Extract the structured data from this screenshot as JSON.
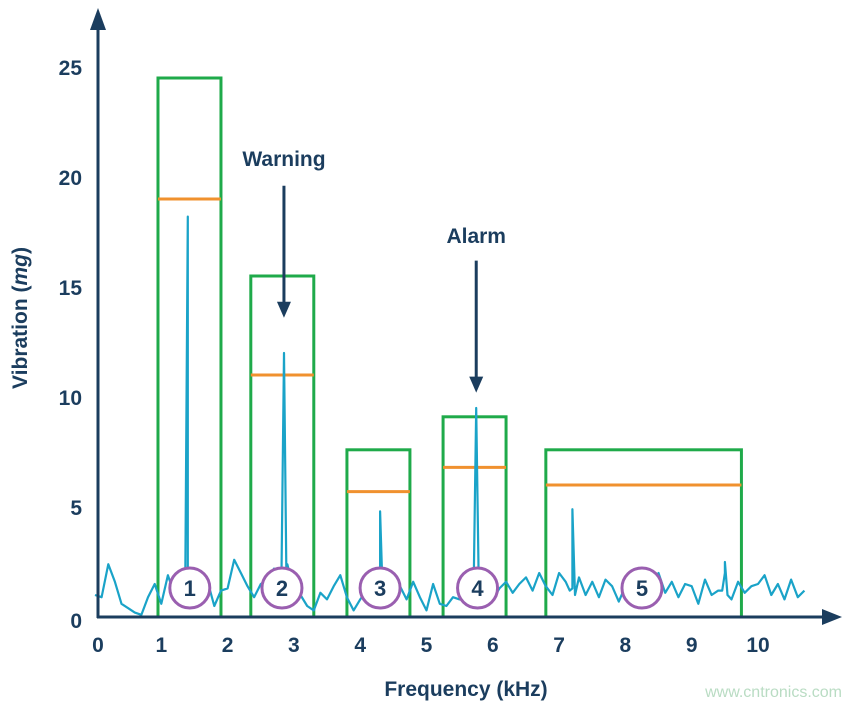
{
  "chart_data": {
    "type": "line",
    "xlabel": "Frequency (kHz)",
    "ylabel_prefix": "Vibration (",
    "ylabel_unit": "mg",
    "ylabel_suffix": ")",
    "xlim": [
      0,
      11
    ],
    "ylim": [
      0,
      27
    ],
    "xticks": [
      "0",
      "1",
      "2",
      "3",
      "4",
      "5",
      "6",
      "7",
      "8",
      "9",
      "10"
    ],
    "yticks": [
      "0",
      "5",
      "10",
      "15",
      "20",
      "25"
    ],
    "grid": false,
    "spectrum": {
      "x_start": 0,
      "x_step": 0.1,
      "values": [
        1.0,
        0.9,
        2.4,
        1.6,
        0.6,
        0.4,
        0.2,
        0.1,
        0.9,
        1.5,
        0.6,
        1.9,
        1.0,
        0.8,
        2.2,
        0.7,
        1.8,
        1.6,
        0.5,
        1.2,
        1.3,
        2.6,
        2.0,
        1.4,
        0.9,
        1.5,
        1.7,
        2.2,
        1.8,
        2.4,
        1.2,
        1.0,
        0.5,
        0.3,
        1.1,
        0.8,
        1.4,
        1.9,
        0.9,
        0.3,
        0.8,
        1.2,
        0.6,
        0.9,
        1.0,
        1.3,
        1.4,
        0.8,
        1.6,
        0.9,
        0.3,
        1.5,
        0.6,
        0.5,
        0.9,
        0.8,
        1.0,
        1.1,
        0.7,
        0.9,
        0.8,
        1.3,
        1.6,
        1.1,
        1.5,
        1.8,
        1.2,
        2.0,
        1.4,
        1.0,
        2.0,
        1.6,
        1.3,
        1.8,
        1.0,
        1.6,
        0.9,
        1.7,
        1.4,
        0.7,
        1.4,
        1.9,
        1.1,
        1.6,
        0.8,
        2.0,
        1.1,
        1.6,
        0.9,
        1.5,
        1.4,
        0.6,
        1.7,
        1.0,
        1.2,
        2.0,
        0.8,
        1.6,
        1.1,
        1.4,
        1.5,
        1.9,
        1.0,
        1.5,
        0.8,
        1.7,
        0.9,
        1.2
      ]
    },
    "peaks": [
      [
        1.4,
        18.2
      ],
      [
        2.85,
        12.0
      ],
      [
        4.3,
        4.8
      ],
      [
        5.75,
        9.5
      ],
      [
        7.2,
        4.9
      ],
      [
        9.5,
        2.5
      ]
    ],
    "bands": [
      {
        "label": "1",
        "x": [
          0.95,
          1.9
        ],
        "upper": 24.5,
        "threshold": 19.0
      },
      {
        "label": "2",
        "x": [
          2.35,
          3.3
        ],
        "upper": 15.5,
        "threshold": 11.0
      },
      {
        "label": "3",
        "x": [
          3.8,
          4.75
        ],
        "upper": 7.6,
        "threshold": 5.7
      },
      {
        "label": "4",
        "x": [
          5.25,
          6.2
        ],
        "upper": 9.1,
        "threshold": 6.8
      },
      {
        "label": "5",
        "x": [
          6.8,
          9.75
        ],
        "upper": 7.6,
        "threshold": 6.0
      }
    ],
    "annotations": [
      {
        "text": "Warning",
        "x": 2.85,
        "y_text": 20.5,
        "y_from": 19.6,
        "y_to": 13.6
      },
      {
        "text": "Alarm",
        "x": 5.75,
        "y_text": 17.0,
        "y_from": 16.2,
        "y_to": 10.2
      }
    ],
    "colors": {
      "spectrum": "#1aa3c8",
      "band": "#1faa4a",
      "threshold": "#f0912e",
      "axis": "#1b3d5e",
      "marker": "#9a5fb0"
    }
  },
  "watermark": "www.cntronics.com"
}
